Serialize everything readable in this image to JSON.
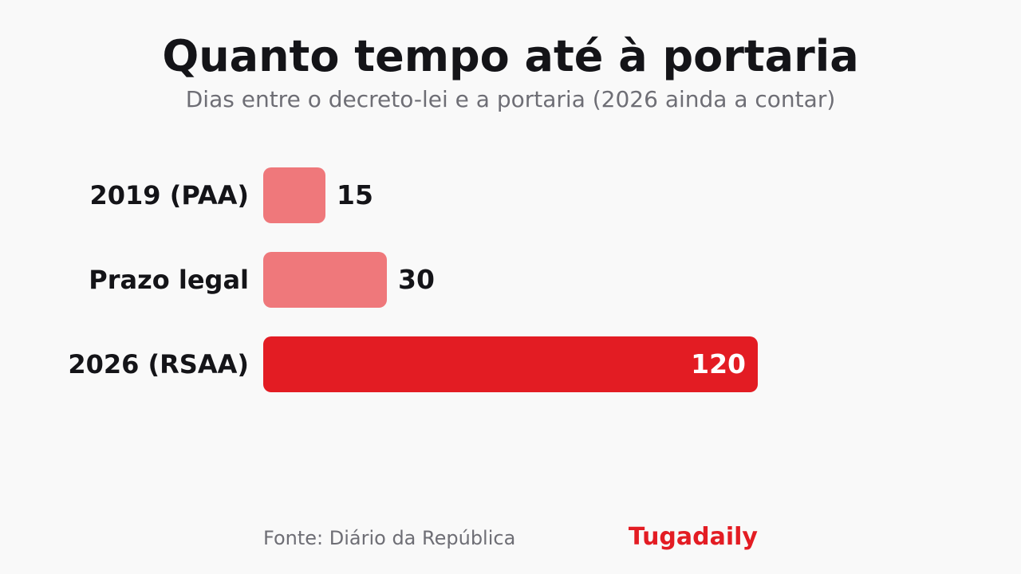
{
  "chart_data": {
    "type": "bar",
    "orientation": "horizontal",
    "title": "Quanto tempo até à portaria",
    "subtitle": "Dias entre o decreto-lei e a portaria (2026 ainda a contar)",
    "categories": [
      "2019 (PAA)",
      "Prazo legal",
      "2026 (RSAA)"
    ],
    "values": [
      15,
      30,
      120
    ],
    "value_labels": [
      "15",
      "30",
      "120"
    ],
    "colors": [
      "#ef787b",
      "#ef787b",
      "#e31c23"
    ],
    "xlim": [
      0,
      120
    ],
    "grid": false,
    "legend": "none"
  },
  "footer": {
    "source": "Fonte: Diário da República",
    "brand": "Tugadaily"
  }
}
